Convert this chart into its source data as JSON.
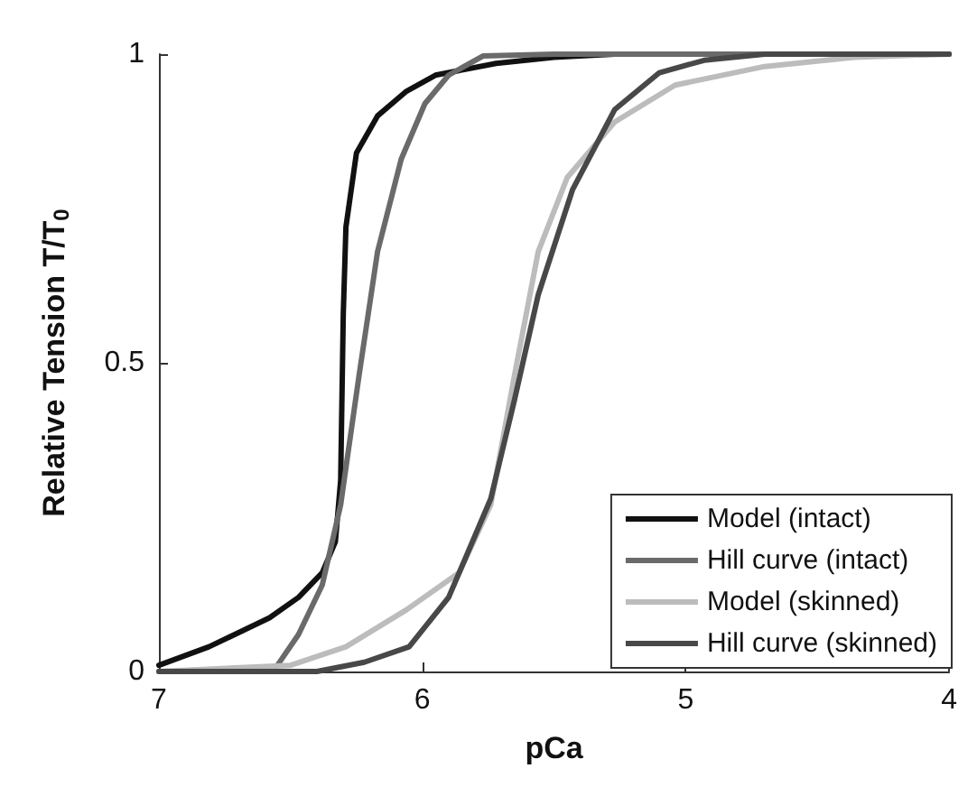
{
  "chart_data": {
    "type": "line",
    "xlabel": "pCa",
    "ylabel": "Relative Tension T/T$_{0}$",
    "xlim": [
      7,
      4
    ],
    "xticks": [
      7,
      6,
      5,
      4
    ],
    "ylim": [
      0,
      1
    ],
    "yticks": [
      0,
      0.5,
      1
    ],
    "grid": false,
    "legend": "bottom right",
    "marker": "none",
    "line_style": "solid",
    "series": [
      {
        "name": "Model (intact)",
        "color": "#111111",
        "x": [
          7,
          6.81,
          6.58,
          6.47,
          6.38,
          6.33,
          6.31,
          6.3,
          6.29,
          6.25,
          6.17,
          6.06,
          5.95,
          5.72,
          5.5,
          5.27,
          4
        ],
        "values": [
          0.01,
          0.04,
          0.087,
          0.12,
          0.16,
          0.21,
          0.31,
          0.58,
          0.72,
          0.84,
          0.9,
          0.94,
          0.966,
          0.985,
          0.995,
          1,
          1
        ]
      },
      {
        "name": "Hill curve (intact)",
        "color": "#6a6a6a",
        "x": [
          7,
          6.6,
          6.55,
          6.47,
          6.38,
          6.31,
          6.24,
          6.17,
          6.08,
          5.99,
          5.9,
          5.77,
          5.5,
          4
        ],
        "values": [
          0,
          0,
          0.01,
          0.06,
          0.14,
          0.27,
          0.48,
          0.68,
          0.83,
          0.92,
          0.966,
          0.997,
          1,
          1
        ]
      },
      {
        "name": "Model (skinned)",
        "color": "#bcbcbc",
        "x": [
          7,
          6.5,
          6.29,
          6.06,
          5.86,
          5.74,
          5.65,
          5.56,
          5.45,
          5.27,
          5.04,
          4.7,
          4.36,
          4
        ],
        "values": [
          0,
          0.01,
          0.04,
          0.1,
          0.16,
          0.27,
          0.48,
          0.68,
          0.8,
          0.89,
          0.95,
          0.98,
          0.995,
          1
        ]
      },
      {
        "name": "Hill curve (skinned)",
        "color": "#484848",
        "x": [
          7,
          6.4,
          6.22,
          6.05,
          5.9,
          5.74,
          5.65,
          5.56,
          5.43,
          5.27,
          5.1,
          4.93,
          4.7,
          4
        ],
        "values": [
          0,
          0,
          0.015,
          0.04,
          0.12,
          0.28,
          0.44,
          0.61,
          0.78,
          0.91,
          0.97,
          0.99,
          1,
          1
        ]
      }
    ]
  }
}
